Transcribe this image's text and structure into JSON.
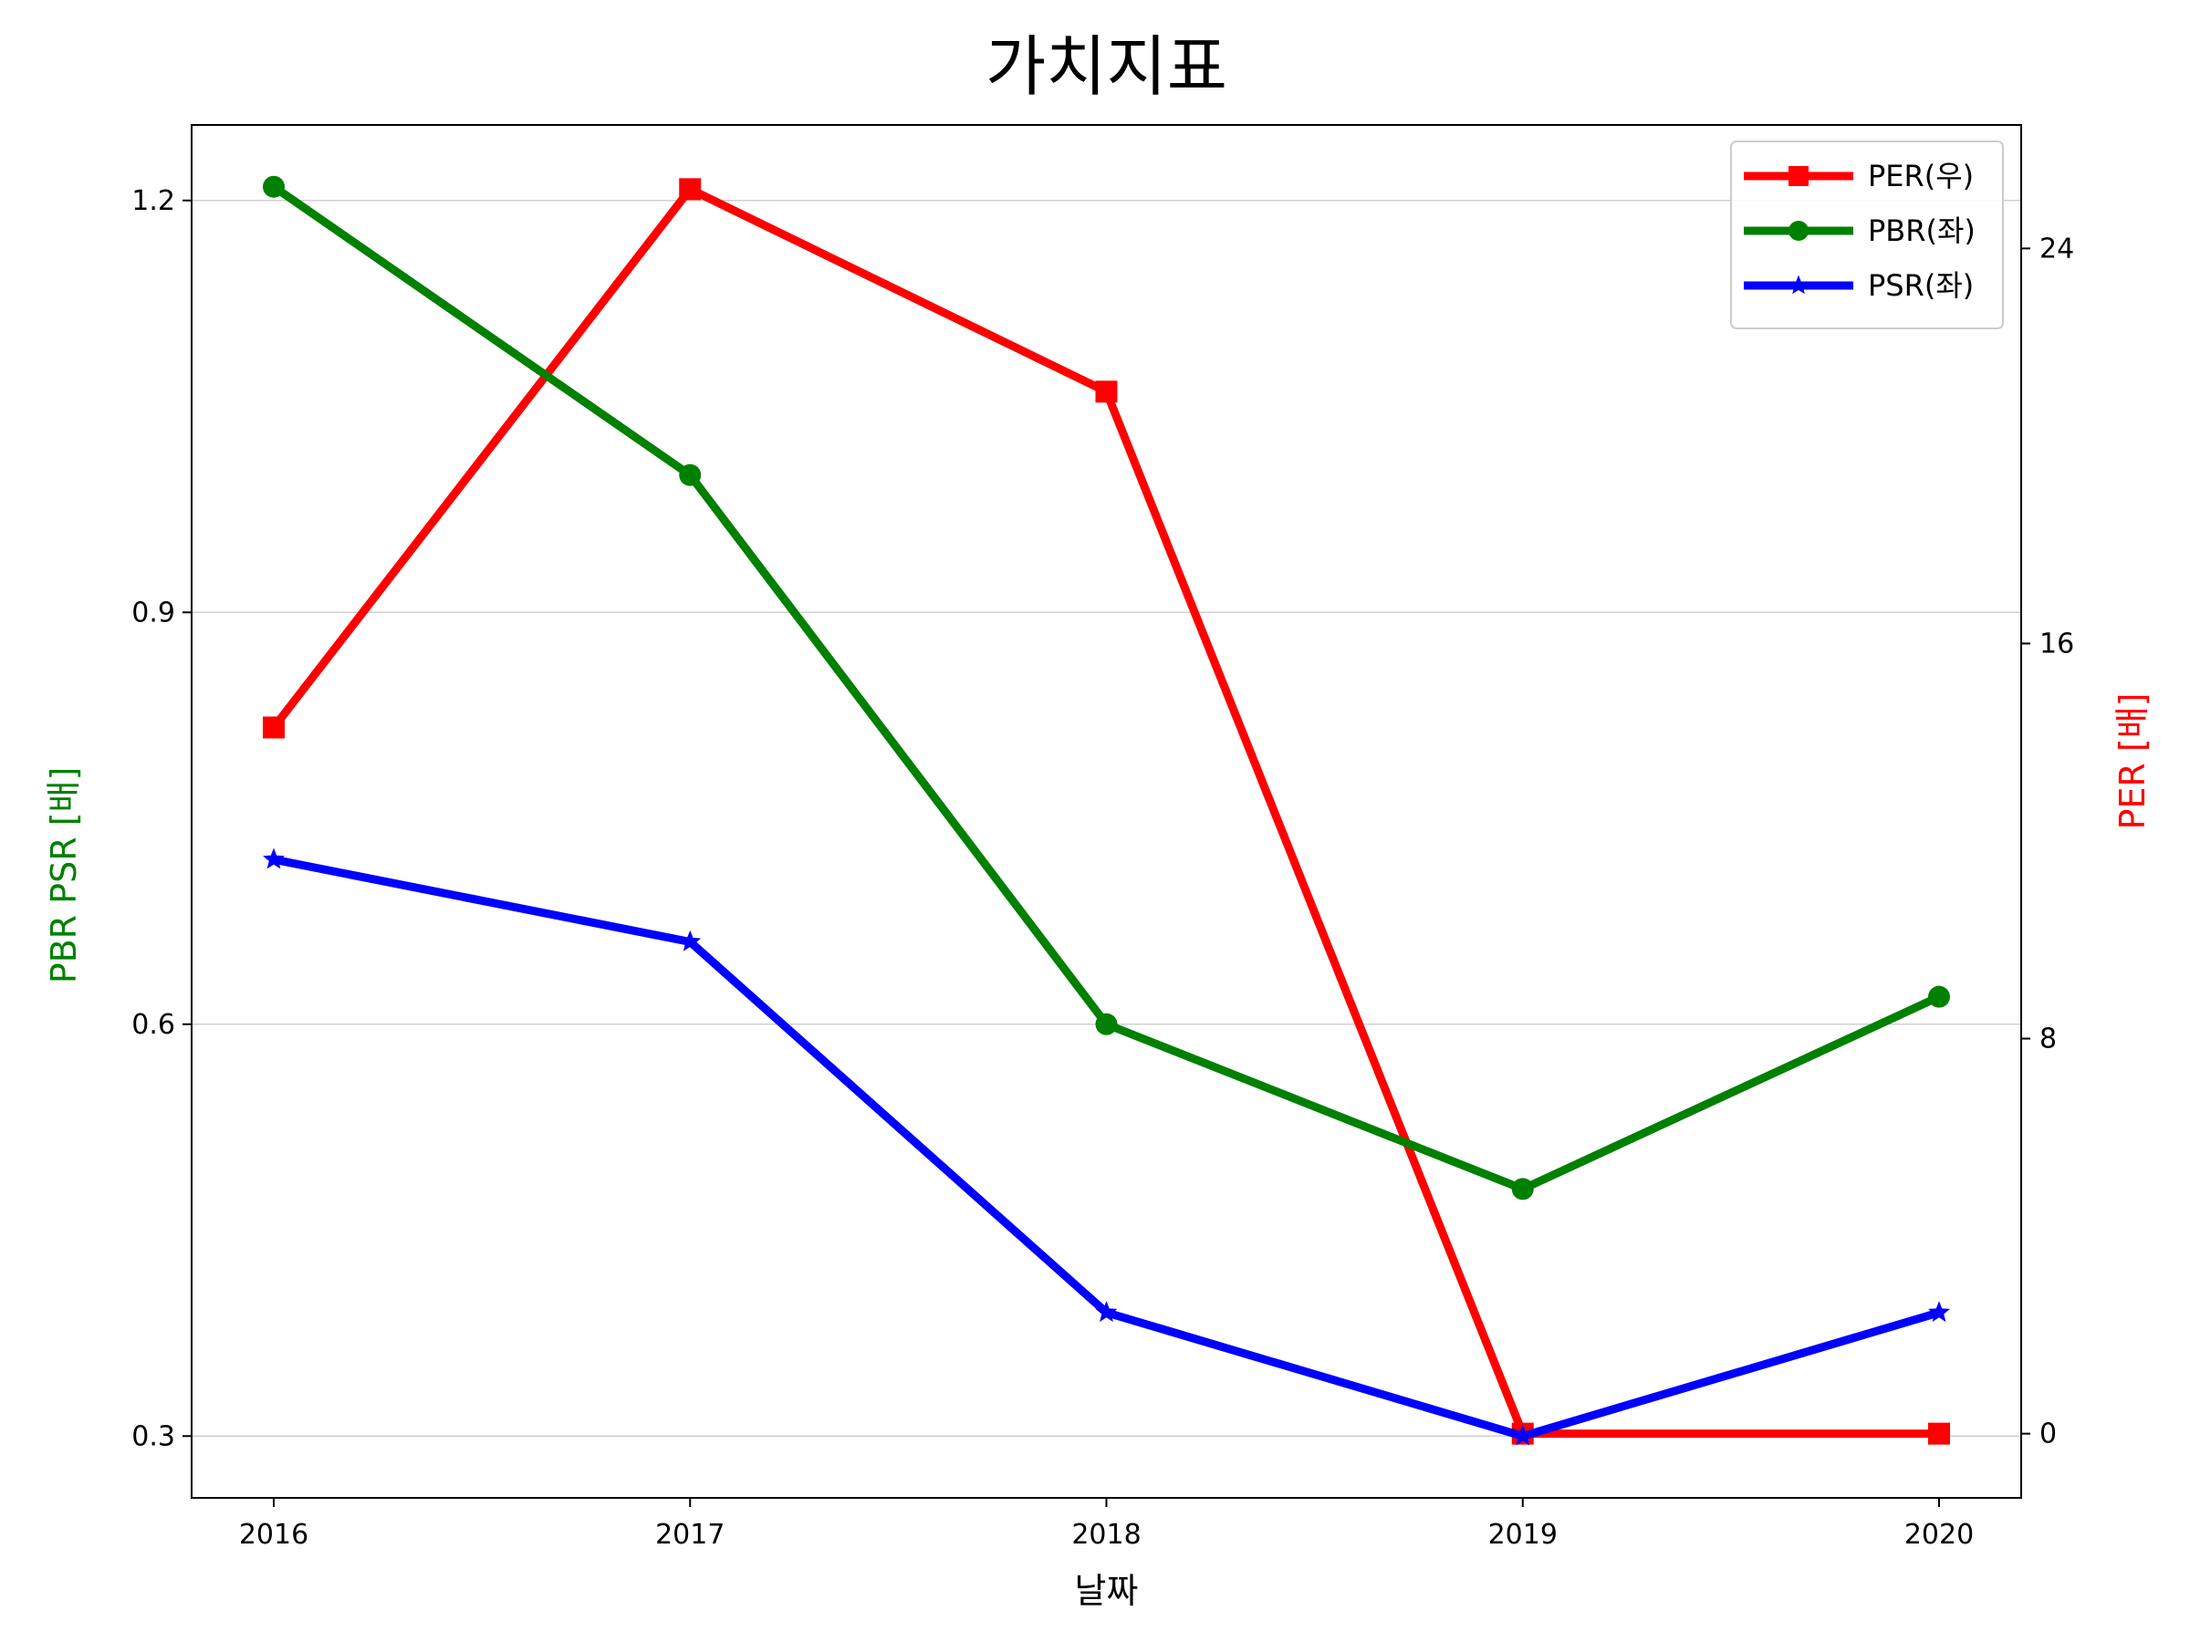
{
  "chart_data": {
    "type": "line",
    "title": "가치지표",
    "xlabel": "날짜",
    "ylabel_left": "PBR PSR [배]",
    "ylabel_right": "PER [배]",
    "ylabel_left_color": "#008000",
    "ylabel_right_color": "#ff0000",
    "categories": [
      "2016",
      "2017",
      "2018",
      "2019",
      "2020"
    ],
    "y_left": {
      "ticks": [
        "0.3",
        "0.6",
        "0.9",
        "1.2"
      ],
      "tick_values": [
        0.3,
        0.6,
        0.9,
        1.2
      ],
      "range": [
        0.255,
        1.255
      ]
    },
    "y_right": {
      "ticks": [
        "0",
        "8",
        "16",
        "24"
      ],
      "tick_values": [
        0,
        8,
        16,
        24
      ],
      "range": [
        -1.3,
        26.5
      ]
    },
    "grid": "horizontal",
    "legend_position": "top-right",
    "series": [
      {
        "name": "PER(우)",
        "axis": "right",
        "color": "#ff0000",
        "marker": "square",
        "values": [
          14.3,
          25.2,
          21.1,
          0.0,
          0.0
        ]
      },
      {
        "name": "PBR(좌)",
        "axis": "left",
        "color": "#008000",
        "marker": "circle",
        "values": [
          1.21,
          1.0,
          0.6,
          0.48,
          0.62
        ]
      },
      {
        "name": "PSR(좌)",
        "axis": "left",
        "color": "#0000ff",
        "marker": "star",
        "values": [
          0.72,
          0.66,
          0.39,
          0.3,
          0.39
        ]
      }
    ]
  }
}
